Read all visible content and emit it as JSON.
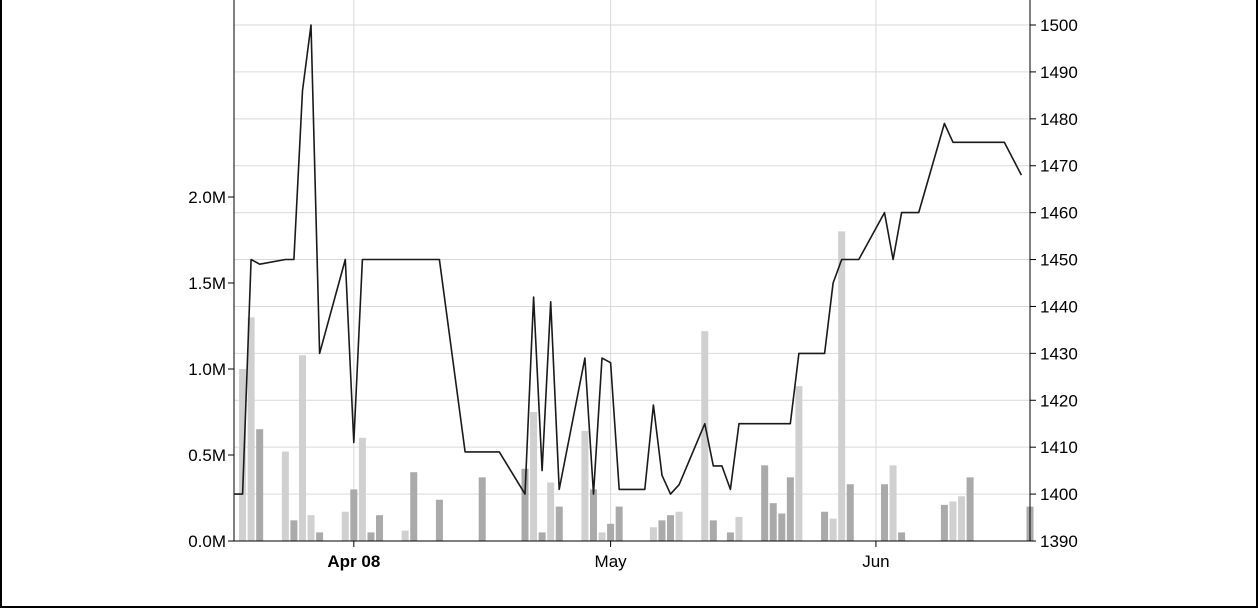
{
  "chart_data": {
    "type": "line+bar",
    "title": "",
    "x_ticks": [
      {
        "label": "Apr 08",
        "date": "2008-04-01",
        "bold": true
      },
      {
        "label": "May",
        "date": "2008-05-01",
        "bold": false
      },
      {
        "label": "Jun",
        "date": "2008-06-01",
        "bold": false
      }
    ],
    "x_range": [
      "2008-03-18",
      "2008-06-19"
    ],
    "price_axis": {
      "side": "right",
      "ylim": [
        1390,
        1500
      ],
      "ticks": [
        "1390",
        "1400",
        "1410",
        "1420",
        "1430",
        "1440",
        "1450",
        "1460",
        "1470",
        "1480",
        "1490",
        "1500"
      ]
    },
    "volume_axis": {
      "side": "left",
      "ylim": [
        0,
        3.0
      ],
      "ticks": [
        {
          "v": 0,
          "label": "0.0M"
        },
        {
          "v": 0.5,
          "label": "0.5M"
        },
        {
          "v": 1.0,
          "label": "1.0M"
        },
        {
          "v": 1.5,
          "label": "1.5M"
        },
        {
          "v": 2.0,
          "label": "2.0M"
        }
      ]
    },
    "grid": true,
    "price_series": [
      [
        "2008-03-18",
        1400
      ],
      [
        "2008-03-19",
        1400
      ],
      [
        "2008-03-20",
        1450
      ],
      [
        "2008-03-21",
        1449
      ],
      [
        "2008-03-24",
        1450
      ],
      [
        "2008-03-25",
        1450
      ],
      [
        "2008-03-26",
        1486
      ],
      [
        "2008-03-27",
        1500
      ],
      [
        "2008-03-28",
        1430
      ],
      [
        "2008-03-31",
        1450
      ],
      [
        "2008-04-01",
        1411
      ],
      [
        "2008-04-02",
        1450
      ],
      [
        "2008-04-03",
        1450
      ],
      [
        "2008-04-04",
        1450
      ],
      [
        "2008-04-07",
        1450
      ],
      [
        "2008-04-08",
        1450
      ],
      [
        "2008-04-09",
        1450
      ],
      [
        "2008-04-10",
        1450
      ],
      [
        "2008-04-11",
        1450
      ],
      [
        "2008-04-14",
        1409
      ],
      [
        "2008-04-15",
        1409
      ],
      [
        "2008-04-16",
        1409
      ],
      [
        "2008-04-17",
        1409
      ],
      [
        "2008-04-18",
        1409
      ],
      [
        "2008-04-21",
        1400
      ],
      [
        "2008-04-22",
        1442
      ],
      [
        "2008-04-23",
        1405
      ],
      [
        "2008-04-24",
        1441
      ],
      [
        "2008-04-25",
        1401
      ],
      [
        "2008-04-28",
        1429
      ],
      [
        "2008-04-29",
        1400
      ],
      [
        "2008-04-30",
        1429
      ],
      [
        "2008-05-01",
        1428
      ],
      [
        "2008-05-02",
        1401
      ],
      [
        "2008-05-05",
        1401
      ],
      [
        "2008-05-06",
        1419
      ],
      [
        "2008-05-07",
        1404
      ],
      [
        "2008-05-08",
        1400
      ],
      [
        "2008-05-09",
        1402
      ],
      [
        "2008-05-12",
        1415
      ],
      [
        "2008-05-13",
        1406
      ],
      [
        "2008-05-14",
        1406
      ],
      [
        "2008-05-15",
        1401
      ],
      [
        "2008-05-16",
        1415
      ],
      [
        "2008-05-19",
        1415
      ],
      [
        "2008-05-20",
        1415
      ],
      [
        "2008-05-21",
        1415
      ],
      [
        "2008-05-22",
        1415
      ],
      [
        "2008-05-23",
        1430
      ],
      [
        "2008-05-26",
        1430
      ],
      [
        "2008-05-27",
        1445
      ],
      [
        "2008-05-28",
        1450
      ],
      [
        "2008-05-29",
        1450
      ],
      [
        "2008-05-30",
        1450
      ],
      [
        "2008-06-02",
        1460
      ],
      [
        "2008-06-03",
        1450
      ],
      [
        "2008-06-04",
        1460
      ],
      [
        "2008-06-05",
        1460
      ],
      [
        "2008-06-06",
        1460
      ],
      [
        "2008-06-09",
        1479
      ],
      [
        "2008-06-10",
        1475
      ],
      [
        "2008-06-11",
        1475
      ],
      [
        "2008-06-12",
        1475
      ],
      [
        "2008-06-13",
        1475
      ],
      [
        "2008-06-16",
        1475
      ],
      [
        "2008-06-18",
        1468
      ]
    ],
    "volume_series": [
      [
        "2008-03-19",
        1.0,
        "light"
      ],
      [
        "2008-03-20",
        1.3,
        "light"
      ],
      [
        "2008-03-21",
        0.65,
        "dark"
      ],
      [
        "2008-03-24",
        0.52,
        "light"
      ],
      [
        "2008-03-25",
        0.12,
        "dark"
      ],
      [
        "2008-03-26",
        1.08,
        "light"
      ],
      [
        "2008-03-27",
        0.15,
        "light"
      ],
      [
        "2008-03-28",
        0.05,
        "dark"
      ],
      [
        "2008-03-31",
        0.17,
        "light"
      ],
      [
        "2008-04-01",
        0.3,
        "dark"
      ],
      [
        "2008-04-02",
        0.6,
        "light"
      ],
      [
        "2008-04-03",
        0.05,
        "dark"
      ],
      [
        "2008-04-04",
        0.15,
        "dark"
      ],
      [
        "2008-04-07",
        0.06,
        "light"
      ],
      [
        "2008-04-08",
        0.4,
        "dark"
      ],
      [
        "2008-04-11",
        0.24,
        "dark"
      ],
      [
        "2008-04-16",
        0.37,
        "dark"
      ],
      [
        "2008-04-21",
        0.42,
        "dark"
      ],
      [
        "2008-04-22",
        0.75,
        "light"
      ],
      [
        "2008-04-23",
        0.05,
        "dark"
      ],
      [
        "2008-04-24",
        0.34,
        "light"
      ],
      [
        "2008-04-25",
        0.2,
        "dark"
      ],
      [
        "2008-04-28",
        0.64,
        "light"
      ],
      [
        "2008-04-29",
        0.3,
        "dark"
      ],
      [
        "2008-04-30",
        0.05,
        "light"
      ],
      [
        "2008-05-01",
        0.1,
        "dark"
      ],
      [
        "2008-05-02",
        0.2,
        "dark"
      ],
      [
        "2008-05-06",
        0.08,
        "light"
      ],
      [
        "2008-05-07",
        0.12,
        "dark"
      ],
      [
        "2008-05-08",
        0.15,
        "dark"
      ],
      [
        "2008-05-09",
        0.17,
        "light"
      ],
      [
        "2008-05-12",
        1.22,
        "light"
      ],
      [
        "2008-05-13",
        0.12,
        "dark"
      ],
      [
        "2008-05-15",
        0.05,
        "dark"
      ],
      [
        "2008-05-16",
        0.14,
        "light"
      ],
      [
        "2008-05-19",
        0.44,
        "dark"
      ],
      [
        "2008-05-20",
        0.22,
        "dark"
      ],
      [
        "2008-05-21",
        0.16,
        "dark"
      ],
      [
        "2008-05-22",
        0.37,
        "dark"
      ],
      [
        "2008-05-23",
        0.9,
        "light"
      ],
      [
        "2008-05-26",
        0.17,
        "dark"
      ],
      [
        "2008-05-27",
        0.13,
        "light"
      ],
      [
        "2008-05-28",
        1.8,
        "light"
      ],
      [
        "2008-05-29",
        0.33,
        "dark"
      ],
      [
        "2008-06-02",
        0.33,
        "dark"
      ],
      [
        "2008-06-03",
        0.44,
        "light"
      ],
      [
        "2008-06-04",
        0.05,
        "dark"
      ],
      [
        "2008-06-09",
        0.21,
        "dark"
      ],
      [
        "2008-06-10",
        0.23,
        "light"
      ],
      [
        "2008-06-11",
        0.26,
        "light"
      ],
      [
        "2008-06-12",
        0.37,
        "dark"
      ],
      [
        "2008-06-19",
        0.2,
        "dark"
      ]
    ],
    "colors": {
      "line": "#1a1a1a",
      "bar_light": "#d0d0d0",
      "bar_dark": "#aaaaaa",
      "grid": "#d9d9d9",
      "axis": "#000000",
      "frame": "#000000"
    }
  }
}
